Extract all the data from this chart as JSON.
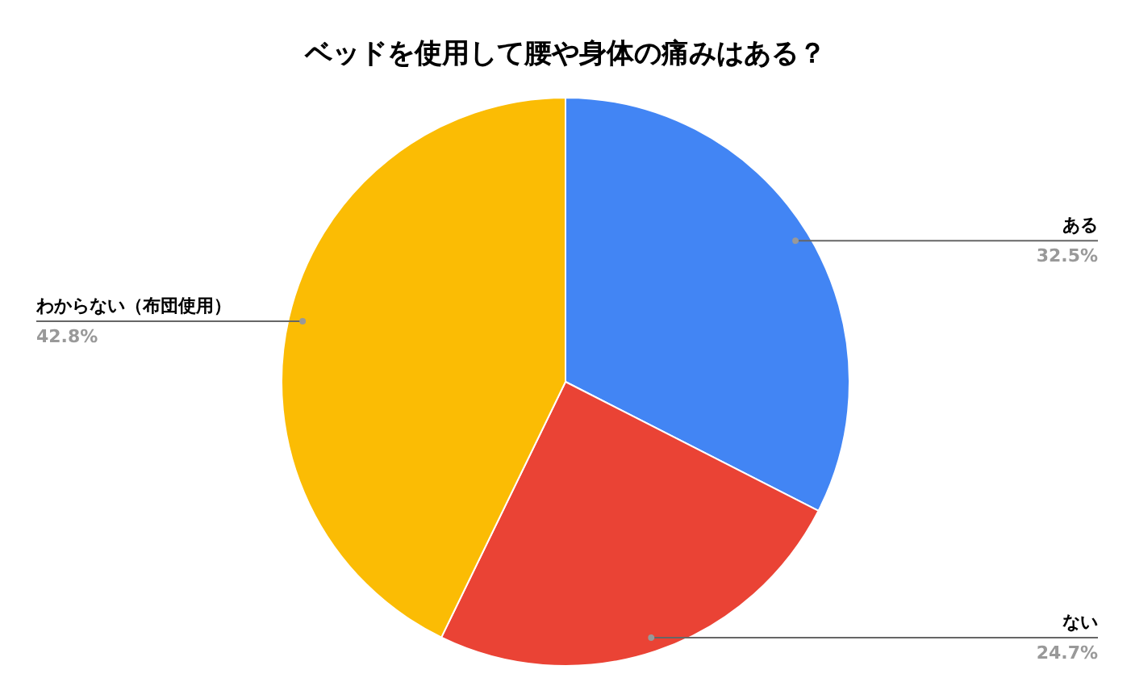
{
  "chart_data": {
    "type": "pie",
    "title": "ベッドを使用して腰や身体の痛みはある？",
    "categories": [
      "ある",
      "ない",
      "わからない（布団使用）"
    ],
    "values": [
      32.5,
      24.7,
      42.8
    ],
    "colors": [
      "#4285f4",
      "#ea4335",
      "#fbbc04"
    ],
    "value_labels": [
      "32.5%",
      "24.7%",
      "42.8%"
    ]
  }
}
